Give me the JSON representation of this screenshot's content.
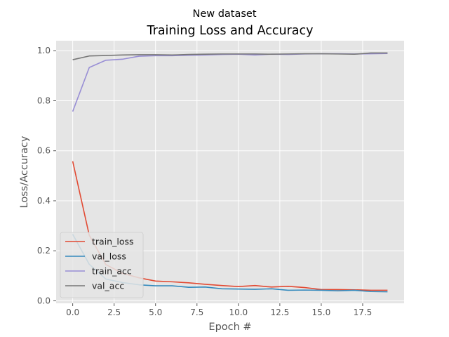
{
  "figure": {
    "suptitle": "New dataset"
  },
  "chart_data": {
    "type": "line",
    "title": "Training Loss and Accuracy",
    "xlabel": "Epoch #",
    "ylabel": "Loss/Accuracy",
    "xlim": [
      -1.0,
      20.0
    ],
    "ylim": [
      -0.01,
      1.04
    ],
    "xticks": [
      0.0,
      2.5,
      5.0,
      7.5,
      10.0,
      12.5,
      15.0,
      17.5
    ],
    "xtick_labels": [
      "0.0",
      "2.5",
      "5.0",
      "7.5",
      "10.0",
      "12.5",
      "15.0",
      "17.5"
    ],
    "yticks": [
      0.0,
      0.2,
      0.4,
      0.6,
      0.8,
      1.0
    ],
    "ytick_labels": [
      "0.0",
      "0.2",
      "0.4",
      "0.6",
      "0.8",
      "1.0"
    ],
    "grid": true,
    "style": "ggplot",
    "legend_position": "lower-left",
    "x": [
      0,
      1,
      2,
      3,
      4,
      5,
      6,
      7,
      8,
      9,
      10,
      11,
      12,
      13,
      14,
      15,
      16,
      17,
      18,
      19
    ],
    "series": [
      {
        "name": "train_loss",
        "color": "#E24A33",
        "values": [
          0.558,
          0.262,
          0.145,
          0.11,
          0.092,
          0.079,
          0.076,
          0.072,
          0.066,
          0.061,
          0.057,
          0.061,
          0.055,
          0.058,
          0.053,
          0.045,
          0.045,
          0.044,
          0.042,
          0.042
        ]
      },
      {
        "name": "val_loss",
        "color": "#348ABD",
        "values": [
          0.266,
          0.146,
          0.087,
          0.073,
          0.064,
          0.06,
          0.06,
          0.054,
          0.055,
          0.048,
          0.047,
          0.046,
          0.048,
          0.042,
          0.043,
          0.042,
          0.04,
          0.042,
          0.037,
          0.036
        ]
      },
      {
        "name": "train_acc",
        "color": "#988ED5",
        "values": [
          0.757,
          0.933,
          0.962,
          0.966,
          0.978,
          0.98,
          0.98,
          0.982,
          0.983,
          0.985,
          0.986,
          0.983,
          0.986,
          0.985,
          0.987,
          0.988,
          0.988,
          0.987,
          0.988,
          0.989
        ]
      },
      {
        "name": "val_acc",
        "color": "#777777",
        "values": [
          0.964,
          0.979,
          0.981,
          0.983,
          0.984,
          0.984,
          0.983,
          0.985,
          0.986,
          0.987,
          0.987,
          0.987,
          0.986,
          0.987,
          0.988,
          0.988,
          0.987,
          0.986,
          0.991,
          0.991
        ]
      }
    ]
  }
}
